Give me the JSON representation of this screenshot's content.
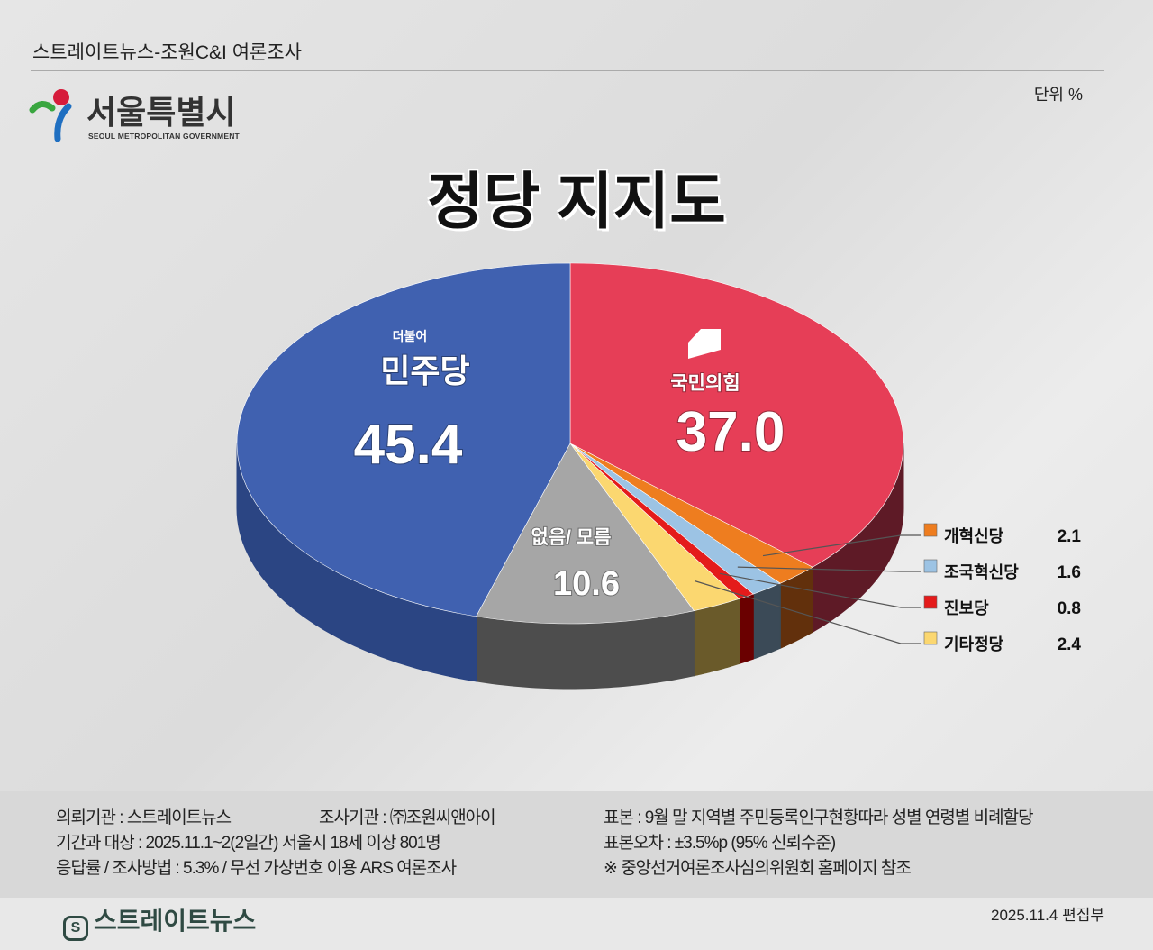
{
  "header": {
    "source": "스트레이트뉴스-조원C&I 여론조사",
    "unit": "단위 %",
    "logo_name": "서울특별시",
    "logo_sub": "SEOUL METROPOLITAN GOVERNMENT"
  },
  "chart_data": {
    "type": "pie",
    "title": "정당 지지도",
    "start": "top, clockwise",
    "slices": [
      {
        "label": "국민의힘",
        "value": 37.0,
        "display": "37.0",
        "color": "#e63e57",
        "side": "#5e1a26"
      },
      {
        "label": "개혁신당",
        "value": 2.1,
        "display": "2.1",
        "color": "#ee7d1f",
        "side": "#62300c"
      },
      {
        "label": "조국혁신당",
        "value": 1.6,
        "display": "1.6",
        "color": "#9cc3e4",
        "side": "#3b4a57"
      },
      {
        "label": "진보당",
        "value": 0.8,
        "display": "0.8",
        "color": "#e41b1b",
        "side": "#6a0000"
      },
      {
        "label": "기타정당",
        "value": 2.4,
        "display": "2.4",
        "color": "#fbd770",
        "side": "#6a5a2a"
      },
      {
        "label": "없음/ 모름",
        "value": 10.6,
        "display": "10.6",
        "color": "#a6a6a6",
        "side": "#4d4d4d"
      },
      {
        "label": "민주당",
        "label_small": "더불어",
        "value": 45.4,
        "display": "45.4",
        "color": "#4061b0",
        "side": "#2b4583"
      }
    ]
  },
  "footer": {
    "left": [
      "의뢰기관 : 스트레이트뉴스",
      "기간과 대상 : 2025.11.1~2(2일간) 서울시  18세 이상 801명",
      "응답률 / 조사방법 : 5.3% / 무선 가상번호 이용 ARS 여론조사"
    ],
    "mid": "조사기관 : ㈜조원씨앤아이",
    "right": [
      "표본 : 9월 말 지역별 주민등록인구현황따라 성별 연령별 비례할당",
      "표본오차 : ±3.5%p (95% 신뢰수준)",
      "※ 중앙선거여론조사심의위원회 홈페이지 참조"
    ],
    "brand": "스트레이트뉴스",
    "edition": "2025.11.4  편집부"
  }
}
